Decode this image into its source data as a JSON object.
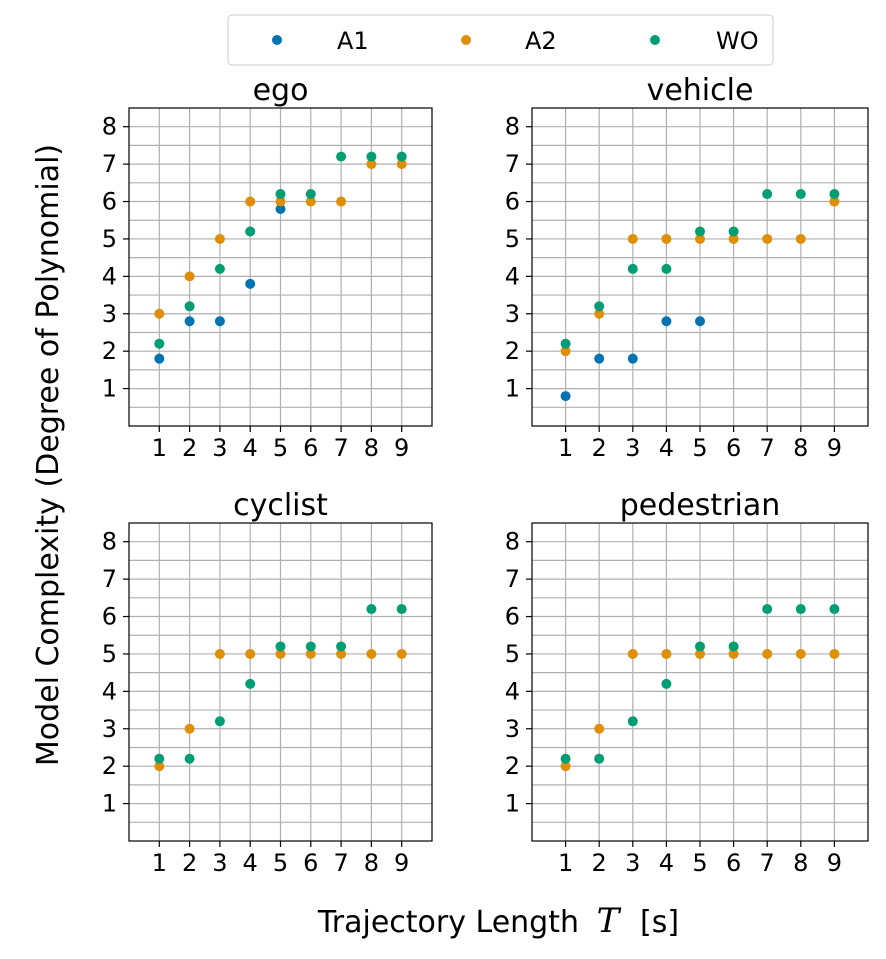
{
  "figure": {
    "ylabel": "Model Complexity (Degree of Polynomial)",
    "xlabel_prefix": "Trajectory Length",
    "xlabel_symbol": "T",
    "xlabel_unit": "[s]"
  },
  "legend": [
    {
      "label": "A1",
      "color": "#0173b2"
    },
    {
      "label": "A2",
      "color": "#de8f05"
    },
    {
      "label": "WO",
      "color": "#029e73"
    }
  ],
  "chart_data": [
    {
      "type": "scatter",
      "title": "ego",
      "x_ticks": [
        "1",
        "2",
        "3",
        "4",
        "5",
        "6",
        "7",
        "8",
        "9"
      ],
      "y_ticks": [
        "1",
        "2",
        "3",
        "4",
        "5",
        "6",
        "7",
        "8"
      ],
      "xlim": [
        0,
        10
      ],
      "ylim": [
        0,
        8.5
      ],
      "grid": true,
      "series": [
        {
          "name": "A1",
          "color": "#0173b2",
          "x": [
            1,
            2,
            3,
            4,
            5
          ],
          "y": [
            1.8,
            2.8,
            2.8,
            3.8,
            5.8
          ]
        },
        {
          "name": "A2",
          "color": "#de8f05",
          "x": [
            1,
            2,
            3,
            4,
            5,
            6,
            7,
            8,
            9
          ],
          "y": [
            3,
            4,
            5,
            6,
            6,
            6,
            6,
            7,
            7
          ]
        },
        {
          "name": "WO",
          "color": "#029e73",
          "x": [
            1,
            2,
            3,
            4,
            5,
            6,
            7,
            8,
            9
          ],
          "y": [
            2.2,
            3.2,
            4.2,
            5.2,
            6.2,
            6.2,
            7.2,
            7.2,
            7.2
          ]
        }
      ]
    },
    {
      "type": "scatter",
      "title": "vehicle",
      "x_ticks": [
        "1",
        "2",
        "3",
        "4",
        "5",
        "6",
        "7",
        "8",
        "9"
      ],
      "y_ticks": [
        "1",
        "2",
        "3",
        "4",
        "5",
        "6",
        "7",
        "8"
      ],
      "xlim": [
        0,
        10
      ],
      "ylim": [
        0,
        8.5
      ],
      "grid": true,
      "series": [
        {
          "name": "A1",
          "color": "#0173b2",
          "x": [
            1,
            2,
            3,
            4,
            5
          ],
          "y": [
            0.8,
            1.8,
            1.8,
            2.8,
            2.8
          ]
        },
        {
          "name": "A2",
          "color": "#de8f05",
          "x": [
            1,
            2,
            3,
            4,
            5,
            6,
            7,
            8,
            9
          ],
          "y": [
            2,
            3,
            5,
            5,
            5,
            5,
            5,
            5,
            6
          ]
        },
        {
          "name": "WO",
          "color": "#029e73",
          "x": [
            1,
            2,
            3,
            4,
            5,
            6,
            7,
            8,
            9
          ],
          "y": [
            2.2,
            3.2,
            4.2,
            4.2,
            5.2,
            5.2,
            6.2,
            6.2,
            6.2
          ]
        }
      ]
    },
    {
      "type": "scatter",
      "title": "cyclist",
      "x_ticks": [
        "1",
        "2",
        "3",
        "4",
        "5",
        "6",
        "7",
        "8",
        "9"
      ],
      "y_ticks": [
        "1",
        "2",
        "3",
        "4",
        "5",
        "6",
        "7",
        "8"
      ],
      "xlim": [
        0,
        10
      ],
      "ylim": [
        0,
        8.5
      ],
      "grid": true,
      "series": [
        {
          "name": "A2",
          "color": "#de8f05",
          "x": [
            1,
            2,
            3,
            4,
            5,
            6,
            7,
            8,
            9
          ],
          "y": [
            2,
            3,
            5,
            5,
            5,
            5,
            5,
            5,
            5
          ]
        },
        {
          "name": "WO",
          "color": "#029e73",
          "x": [
            1,
            2,
            3,
            4,
            5,
            6,
            7,
            8,
            9
          ],
          "y": [
            2.2,
            2.2,
            3.2,
            4.2,
            5.2,
            5.2,
            5.2,
            6.2,
            6.2
          ]
        }
      ]
    },
    {
      "type": "scatter",
      "title": "pedestrian",
      "x_ticks": [
        "1",
        "2",
        "3",
        "4",
        "5",
        "6",
        "7",
        "8",
        "9"
      ],
      "y_ticks": [
        "1",
        "2",
        "3",
        "4",
        "5",
        "6",
        "7",
        "8"
      ],
      "xlim": [
        0,
        10
      ],
      "ylim": [
        0,
        8.5
      ],
      "grid": true,
      "series": [
        {
          "name": "A2",
          "color": "#de8f05",
          "x": [
            1,
            2,
            3,
            4,
            5,
            6,
            7,
            8,
            9
          ],
          "y": [
            2,
            3,
            5,
            5,
            5,
            5,
            5,
            5,
            5
          ]
        },
        {
          "name": "WO",
          "color": "#029e73",
          "x": [
            1,
            2,
            3,
            4,
            5,
            6,
            7,
            8,
            9
          ],
          "y": [
            2.2,
            2.2,
            3.2,
            4.2,
            5.2,
            5.2,
            6.2,
            6.2,
            6.2
          ]
        }
      ]
    }
  ]
}
